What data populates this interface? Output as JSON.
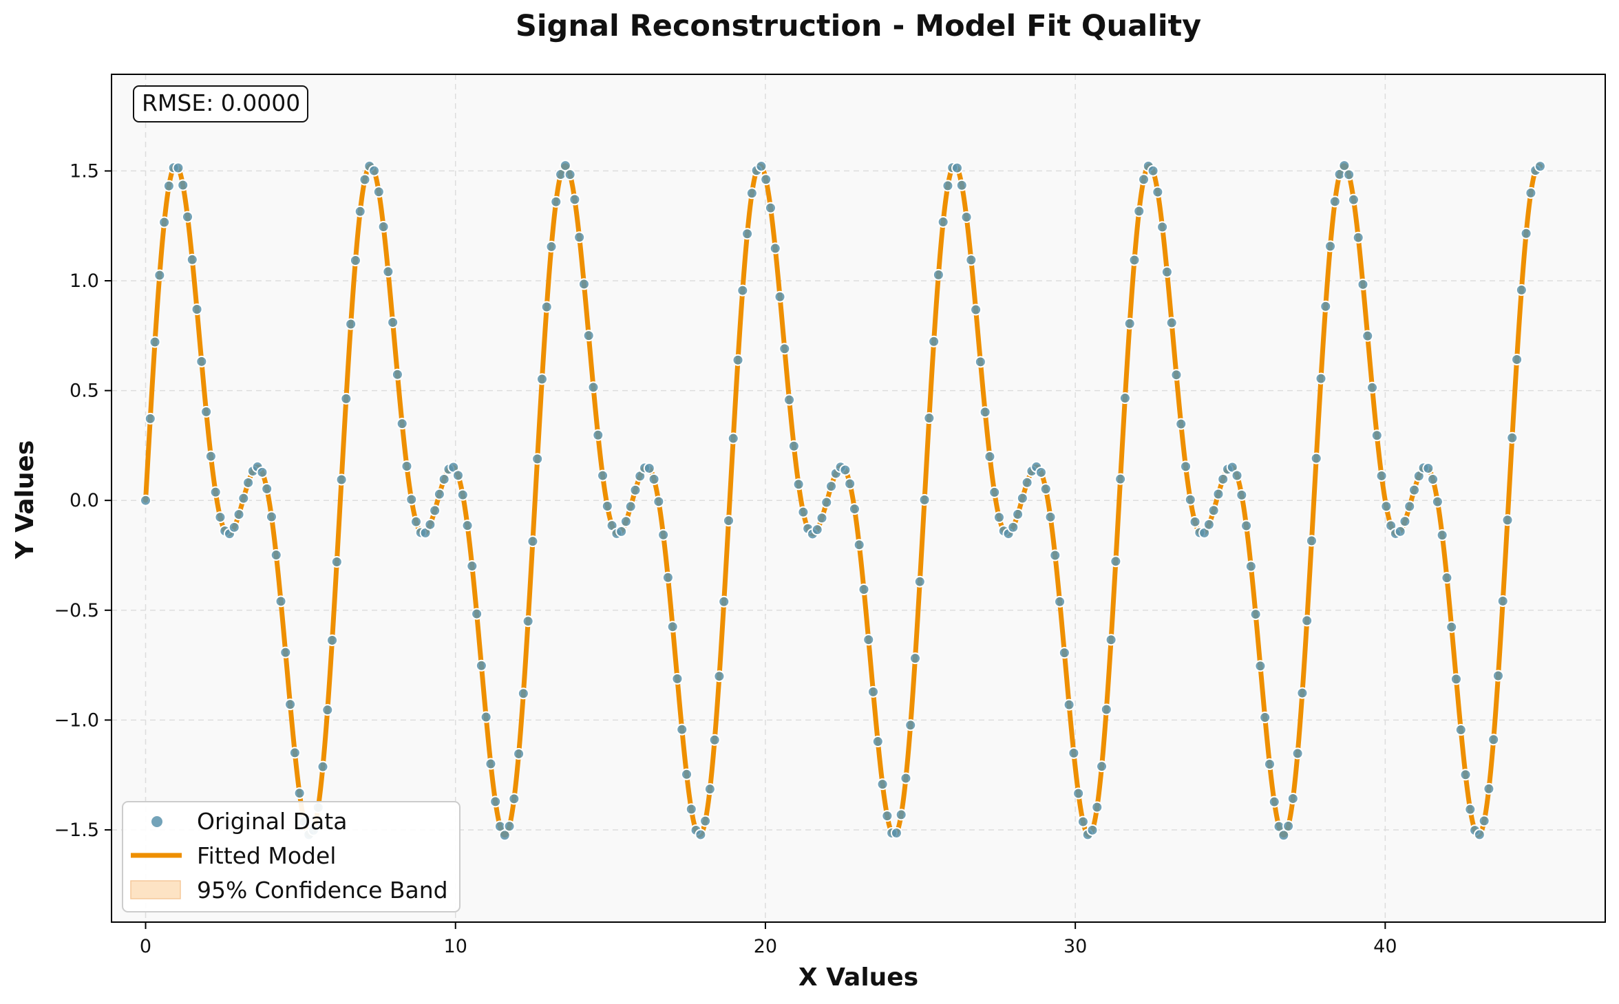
{
  "chart_data": {
    "type": "line",
    "title": "Signal Reconstruction - Model Fit Quality",
    "xlabel": "X Values",
    "ylabel": "Y Values",
    "xlim": [
      -1.1,
      47.1
    ],
    "ylim": [
      -1.92,
      1.94
    ],
    "x_ticks": [
      0,
      10,
      20,
      30,
      40
    ],
    "x_tick_labels": [
      "0",
      "10",
      "20",
      "30",
      "40"
    ],
    "y_ticks": [
      -1.5,
      -1.0,
      -0.5,
      0.0,
      0.5,
      1.0,
      1.5
    ],
    "y_tick_labels": [
      "−1.5",
      "−1.0",
      "−0.5",
      "0.0",
      "0.5",
      "1.0",
      "1.5"
    ],
    "grid": true,
    "legend_position": "lower-left",
    "annotation": "RMSE: 0.0000",
    "model": {
      "form": "y = sin(x) + 0.75*sin(2x)",
      "sin1_amplitude": 1.0,
      "sin2_amplitude": 0.75,
      "x_start": 0.0,
      "x_end": 45.0,
      "num_points": 300
    },
    "series": [
      {
        "name": "Original Data",
        "kind": "scatter",
        "color": "#5b93ad",
        "edge_color": "#ffffff"
      },
      {
        "name": "Fitted Model",
        "kind": "line",
        "color": "#ee8f00"
      },
      {
        "name": "95% Confidence Band",
        "kind": "band",
        "color": "#fde3c4",
        "half_width": 0.0
      }
    ]
  }
}
